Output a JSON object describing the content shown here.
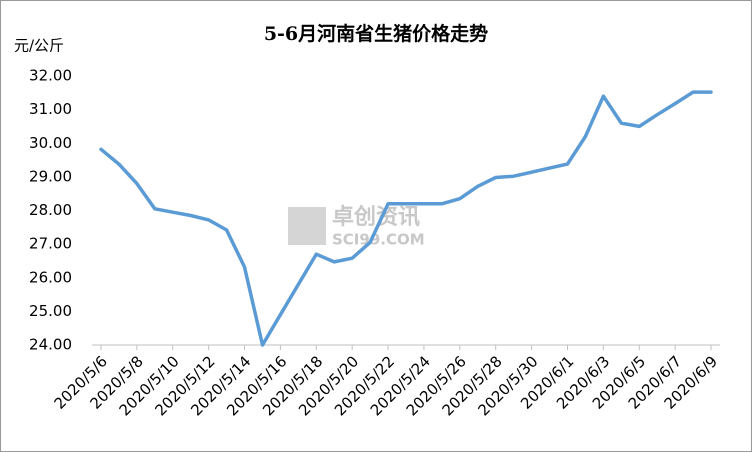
{
  "chart_data": {
    "type": "line",
    "title": "5-6月河南省生猪价格走势",
    "y_label": "元/公斤",
    "watermark": {
      "brand": "卓创资讯",
      "site": "SCI99.COM"
    },
    "categories": [
      "2020/5/6",
      null,
      "2020/5/8",
      null,
      "2020/5/10",
      null,
      "2020/5/12",
      null,
      "2020/5/14",
      null,
      "2020/5/16",
      null,
      "2020/5/18",
      null,
      "2020/5/20",
      null,
      "2020/5/22",
      null,
      "2020/5/24",
      null,
      "2020/5/26",
      null,
      "2020/5/28",
      null,
      "2020/5/30",
      null,
      "2020/6/1",
      null,
      "2020/6/3",
      null,
      "2020/6/5",
      null,
      "2020/6/7",
      null,
      "2020/6/9"
    ],
    "values": [
      29.82,
      29.38,
      28.8,
      28.05,
      27.95,
      27.85,
      27.72,
      27.42,
      26.32,
      24.0,
      24.9,
      25.8,
      26.7,
      26.47,
      26.58,
      27.05,
      28.2,
      28.2,
      28.2,
      28.2,
      28.35,
      28.72,
      28.98,
      29.02,
      29.14,
      29.26,
      29.38,
      30.2,
      31.4,
      30.6,
      30.5,
      30.85,
      31.18,
      31.52,
      31.52
    ],
    "color": "#5b9bd5",
    "ylim": [
      24,
      32
    ],
    "yticks": [
      {
        "value": 24,
        "label": "24.00"
      },
      {
        "value": 25,
        "label": "25.00"
      },
      {
        "value": 26,
        "label": "26.00"
      },
      {
        "value": 27,
        "label": "27.00"
      },
      {
        "value": 28,
        "label": "28.00"
      },
      {
        "value": 29,
        "label": "29.00"
      },
      {
        "value": 30,
        "label": "30.00"
      },
      {
        "value": 31,
        "label": "31.00"
      },
      {
        "value": 32,
        "label": "32.00"
      }
    ],
    "grid": false
  }
}
